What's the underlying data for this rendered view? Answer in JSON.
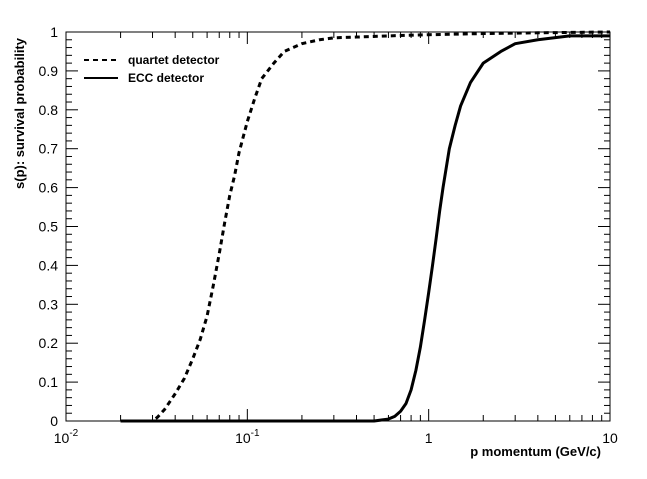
{
  "chart_data": {
    "type": "line",
    "xlabel": "p momentum (GeV/c)",
    "ylabel": "s(p): survival probability",
    "x_scale": "log",
    "xlim": [
      0.01,
      10
    ],
    "ylim": [
      0,
      1
    ],
    "x_ticks": [
      {
        "value": 0.01,
        "base": "10",
        "exp": "-2"
      },
      {
        "value": 0.1,
        "base": "10",
        "exp": "-1"
      },
      {
        "value": 1,
        "base": "1",
        "exp": ""
      },
      {
        "value": 10,
        "base": "10",
        "exp": ""
      }
    ],
    "y_ticks": [
      {
        "value": 0,
        "label": "0"
      },
      {
        "value": 0.1,
        "label": "0.1"
      },
      {
        "value": 0.2,
        "label": "0.2"
      },
      {
        "value": 0.3,
        "label": "0.3"
      },
      {
        "value": 0.4,
        "label": "0.4"
      },
      {
        "value": 0.5,
        "label": "0.5"
      },
      {
        "value": 0.6,
        "label": "0.6"
      },
      {
        "value": 0.7,
        "label": "0.7"
      },
      {
        "value": 0.8,
        "label": "0.8"
      },
      {
        "value": 0.9,
        "label": "0.9"
      },
      {
        "value": 1,
        "label": "1"
      }
    ],
    "grid": false,
    "legend_position": "top-left",
    "series": [
      {
        "name": "quartet detector",
        "style": "dashed",
        "color": "#000000",
        "points": [
          [
            0.02,
            0.0
          ],
          [
            0.03,
            0.0
          ],
          [
            0.032,
            0.01
          ],
          [
            0.035,
            0.03
          ],
          [
            0.04,
            0.07
          ],
          [
            0.045,
            0.11
          ],
          [
            0.05,
            0.16
          ],
          [
            0.055,
            0.21
          ],
          [
            0.06,
            0.27
          ],
          [
            0.065,
            0.35
          ],
          [
            0.07,
            0.43
          ],
          [
            0.075,
            0.51
          ],
          [
            0.08,
            0.58
          ],
          [
            0.085,
            0.63
          ],
          [
            0.09,
            0.69
          ],
          [
            0.1,
            0.77
          ],
          [
            0.11,
            0.83
          ],
          [
            0.12,
            0.88
          ],
          [
            0.14,
            0.92
          ],
          [
            0.16,
            0.95
          ],
          [
            0.2,
            0.97
          ],
          [
            0.25,
            0.98
          ],
          [
            0.3,
            0.985
          ],
          [
            0.4,
            0.987
          ],
          [
            0.6,
            0.99
          ],
          [
            1,
            0.993
          ],
          [
            2,
            0.996
          ],
          [
            4,
            0.998
          ],
          [
            10,
            1.0
          ]
        ]
      },
      {
        "name": "ECC detector",
        "style": "solid",
        "color": "#000000",
        "points": [
          [
            0.02,
            0.0
          ],
          [
            0.1,
            0.0
          ],
          [
            0.3,
            0.0
          ],
          [
            0.5,
            0.0
          ],
          [
            0.6,
            0.005
          ],
          [
            0.65,
            0.012
          ],
          [
            0.7,
            0.025
          ],
          [
            0.75,
            0.045
          ],
          [
            0.8,
            0.08
          ],
          [
            0.85,
            0.13
          ],
          [
            0.9,
            0.19
          ],
          [
            0.95,
            0.26
          ],
          [
            1.0,
            0.33
          ],
          [
            1.05,
            0.4
          ],
          [
            1.1,
            0.47
          ],
          [
            1.15,
            0.54
          ],
          [
            1.2,
            0.6
          ],
          [
            1.3,
            0.7
          ],
          [
            1.4,
            0.76
          ],
          [
            1.5,
            0.81
          ],
          [
            1.7,
            0.87
          ],
          [
            2.0,
            0.92
          ],
          [
            2.5,
            0.95
          ],
          [
            3.0,
            0.97
          ],
          [
            4.0,
            0.98
          ],
          [
            6.0,
            0.99
          ],
          [
            10.0,
            0.99
          ]
        ]
      }
    ]
  }
}
